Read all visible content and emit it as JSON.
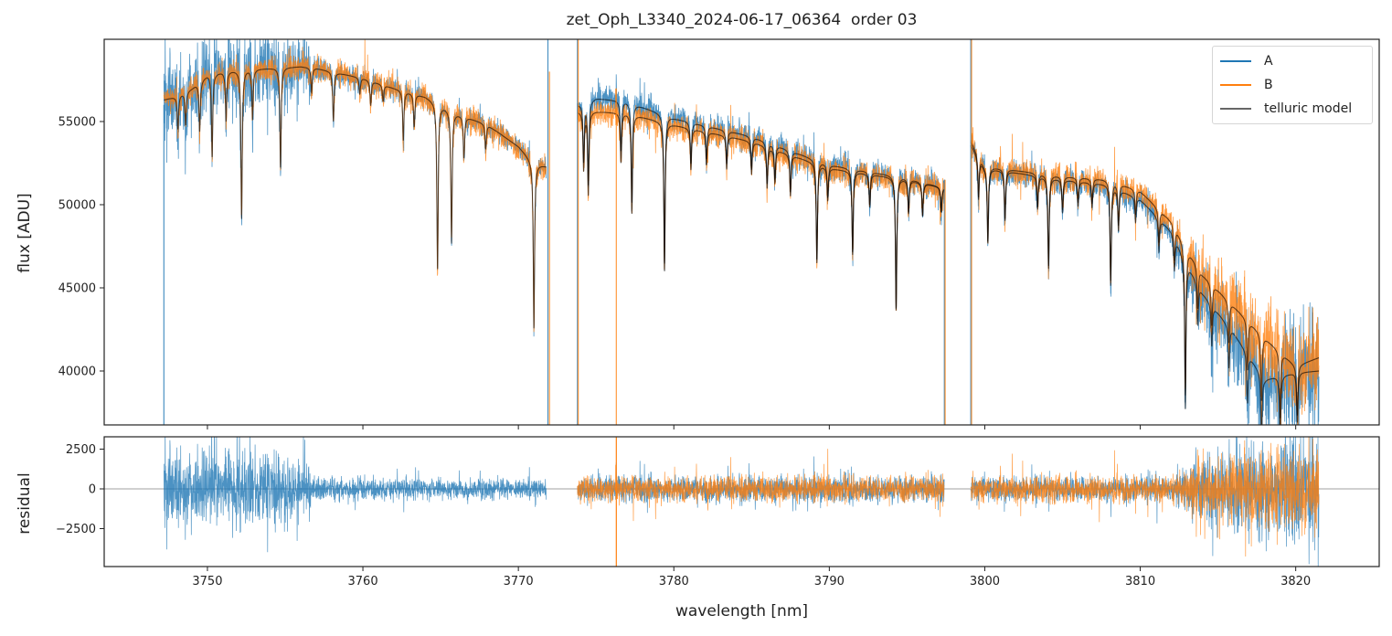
{
  "chart_data": [
    {
      "type": "line",
      "title": "zet_Oph_L3340_2024-06-17_06364  order 03",
      "xlabel": "",
      "ylabel": "flux [ADU]",
      "xlim": [
        3743.36,
        3825.37
      ],
      "ylim": [
        36758,
        59945
      ],
      "xticks": [
        3750,
        3760,
        3770,
        3780,
        3790,
        3800,
        3810,
        3820
      ],
      "xtick_labels_shown": false,
      "yticks": [
        40000,
        45000,
        50000,
        55000
      ],
      "ytick_labels": [
        "40000",
        "45000",
        "50000",
        "55000"
      ],
      "grid": false,
      "legend": {
        "placement": "top-right",
        "entries": [
          "A",
          "B",
          "telluric model"
        ]
      },
      "colors": {
        "A": "#1f77b4",
        "B": "#ff7f0e",
        "telluric model": "#000000"
      },
      "segments": [
        {
          "range": [
            3747.2,
            3771.8
          ],
          "continuum_A": [
            [
              3747.2,
              56300
            ],
            [
              3748,
              56500
            ],
            [
              3749,
              57000
            ],
            [
              3750,
              57800
            ],
            [
              3751,
              58000
            ],
            [
              3752,
              58100
            ],
            [
              3754,
              58200
            ],
            [
              3756,
              58300
            ],
            [
              3757,
              58200
            ],
            [
              3758,
              58000
            ],
            [
              3760,
              57600
            ],
            [
              3762,
              57000
            ],
            [
              3764,
              56500
            ],
            [
              3766,
              55500
            ],
            [
              3768,
              54800
            ],
            [
              3770,
              53500
            ],
            [
              3771,
              52500
            ],
            [
              3771.8,
              52300
            ]
          ],
          "continuum_B": [
            [
              3747.2,
              56300
            ],
            [
              3748,
              56500
            ],
            [
              3749,
              57000
            ],
            [
              3750,
              57800
            ],
            [
              3751,
              58000
            ],
            [
              3752,
              58100
            ],
            [
              3754,
              58200
            ],
            [
              3756,
              58300
            ],
            [
              3757,
              58200
            ],
            [
              3758,
              58000
            ],
            [
              3760,
              57600
            ],
            [
              3762,
              57000
            ],
            [
              3764,
              56500
            ],
            [
              3766,
              55500
            ],
            [
              3768,
              54800
            ],
            [
              3770,
              53500
            ],
            [
              3771,
              52500
            ],
            [
              3771.8,
              52300
            ]
          ]
        },
        {
          "range": [
            3773.8,
            3797.4
          ],
          "continuum_A": [
            [
              3773.8,
              56000
            ],
            [
              3775,
              56400
            ],
            [
              3777,
              56200
            ],
            [
              3780,
              55200
            ],
            [
              3785,
              54100
            ],
            [
              3790,
              52400
            ],
            [
              3795,
              51600
            ],
            [
              3797.4,
              51000
            ]
          ],
          "continuum_B": [
            [
              3773.8,
              55600
            ],
            [
              3775,
              55600
            ],
            [
              3777,
              55500
            ],
            [
              3780,
              54800
            ],
            [
              3785,
              53800
            ],
            [
              3790,
              52200
            ],
            [
              3795,
              51500
            ],
            [
              3797.4,
              51000
            ]
          ]
        },
        {
          "range": [
            3799.1,
            3821.5
          ],
          "continuum_A": [
            [
              3799.1,
              53600
            ],
            [
              3800,
              52200
            ],
            [
              3805,
              51500
            ],
            [
              3808,
              51200
            ],
            [
              3810,
              50300
            ],
            [
              3812,
              48400
            ],
            [
              3814,
              44700
            ],
            [
              3816,
              42300
            ],
            [
              3818,
              39500
            ],
            [
              3820,
              39900
            ],
            [
              3821.5,
              40000
            ]
          ],
          "continuum_B": [
            [
              3799.1,
              53800
            ],
            [
              3800,
              52300
            ],
            [
              3805,
              51700
            ],
            [
              3808,
              51500
            ],
            [
              3810,
              50800
            ],
            [
              3812,
              49000
            ],
            [
              3814,
              45800
            ],
            [
              3816,
              43900
            ],
            [
              3818,
              42000
            ],
            [
              3820,
              40300
            ],
            [
              3821.5,
              40800
            ]
          ]
        }
      ],
      "absorption_lines": [
        [
          3748.1,
          2000
        ],
        [
          3748.6,
          2000
        ],
        [
          3749.5,
          3000
        ],
        [
          3750.3,
          5000
        ],
        [
          3751.2,
          3000
        ],
        [
          3752.2,
          9000
        ],
        [
          3752.9,
          3000
        ],
        [
          3754.7,
          6000
        ],
        [
          3756.7,
          1500
        ],
        [
          3758.1,
          3000
        ],
        [
          3759.8,
          1000
        ],
        [
          3760.5,
          1500
        ],
        [
          3761.3,
          1000
        ],
        [
          3762.6,
          3000
        ],
        [
          3763.3,
          2000
        ],
        [
          3764.8,
          10000
        ],
        [
          3765.7,
          8000
        ],
        [
          3766.5,
          2500
        ],
        [
          3767.9,
          1500
        ],
        [
          3771.0,
          10000
        ],
        [
          3774.2,
          3500
        ],
        [
          3774.5,
          5000
        ],
        [
          3776.6,
          3000
        ],
        [
          3777.3,
          6000
        ],
        [
          3779.4,
          9000
        ],
        [
          3781.1,
          2500
        ],
        [
          3782.1,
          2000
        ],
        [
          3783.4,
          2000
        ],
        [
          3785.0,
          2000
        ],
        [
          3786.0,
          2500
        ],
        [
          3786.5,
          2000
        ],
        [
          3787.5,
          2500
        ],
        [
          3789.2,
          6000
        ],
        [
          3789.9,
          2000
        ],
        [
          3791.5,
          5000
        ],
        [
          3792.6,
          2000
        ],
        [
          3794.3,
          8000
        ],
        [
          3795.1,
          2000
        ],
        [
          3796.0,
          2000
        ],
        [
          3797.2,
          1500
        ],
        [
          3799.6,
          2500
        ],
        [
          3800.2,
          4500
        ],
        [
          3801.3,
          3000
        ],
        [
          3803.4,
          2000
        ],
        [
          3804.1,
          5500
        ],
        [
          3805.0,
          2000
        ],
        [
          3806.0,
          1500
        ],
        [
          3806.9,
          1500
        ],
        [
          3808.1,
          6000
        ],
        [
          3808.6,
          2500
        ],
        [
          3809.7,
          1500
        ],
        [
          3811.2,
          2000
        ],
        [
          3812.2,
          2000
        ],
        [
          3812.9,
          9000
        ],
        [
          3813.7,
          2500
        ],
        [
          3814.6,
          2500
        ],
        [
          3815.7,
          2500
        ],
        [
          3816.9,
          3000
        ],
        [
          3817.8,
          4000
        ],
        [
          3819.0,
          4000
        ],
        [
          3820.1,
          3000
        ]
      ],
      "spikes": [
        {
          "series": "A",
          "x": 3747.2,
          "y": [
            36758,
            56000
          ]
        },
        {
          "series": "B",
          "x": 3772.0,
          "y": [
            36758,
            58000
          ]
        },
        {
          "series": "A",
          "x": 3771.9,
          "y": [
            36758,
            59945
          ]
        },
        {
          "series": "A",
          "x": 3773.8,
          "y": [
            36758,
            59945
          ]
        },
        {
          "series": "B",
          "x": 3773.85,
          "y": [
            36758,
            59945
          ]
        },
        {
          "series": "B",
          "x": 3776.3,
          "y": [
            36758,
            57000
          ]
        },
        {
          "series": "A",
          "x": 3797.4,
          "y": [
            36758,
            51500
          ]
        },
        {
          "series": "B",
          "x": 3797.45,
          "y": [
            36758,
            51500
          ]
        },
        {
          "series": "A",
          "x": 3799.1,
          "y": [
            36758,
            59945
          ]
        },
        {
          "series": "B",
          "x": 3799.15,
          "y": [
            36758,
            59945
          ]
        }
      ]
    },
    {
      "type": "line",
      "xlabel": "wavelength [nm]",
      "ylabel": "residual",
      "xlim": [
        3743.36,
        3825.37
      ],
      "ylim": [
        -4885,
        3276
      ],
      "xticks": [
        3750,
        3760,
        3770,
        3780,
        3790,
        3800,
        3810,
        3820
      ],
      "xtick_labels": [
        "3750",
        "3760",
        "3770",
        "3780",
        "3790",
        "3800",
        "3810",
        "3820"
      ],
      "yticks": [
        -2500,
        0,
        2500
      ],
      "ytick_labels": [
        "−2500",
        "0",
        "2500"
      ],
      "zero_line": true,
      "grid": false,
      "residual_scatter": {
        "A": [
          [
            3747.2,
            3500
          ],
          [
            3748,
            2500
          ],
          [
            3752,
            2500
          ],
          [
            3756.5,
            2000
          ],
          [
            3757,
            800
          ],
          [
            3771.8,
            700
          ],
          [
            3773.8,
            900
          ],
          [
            3797.4,
            900
          ],
          [
            3799.1,
            900
          ],
          [
            3812,
            900
          ],
          [
            3814,
            2500
          ],
          [
            3821.5,
            4000
          ]
        ],
        "B": [
          [
            3773.8,
            900
          ],
          [
            3797.4,
            900
          ],
          [
            3799.1,
            900
          ],
          [
            3812,
            900
          ],
          [
            3814,
            2000
          ],
          [
            3821.5,
            3500
          ]
        ]
      },
      "residual_spikes": [
        {
          "series": "B",
          "x": 3776.3,
          "y": [
            -4885,
            3276
          ]
        }
      ]
    }
  ]
}
